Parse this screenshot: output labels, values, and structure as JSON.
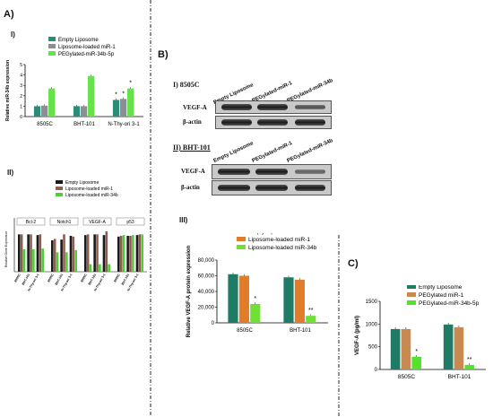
{
  "panels": {
    "A": "A)",
    "B": "B)",
    "C": "C)"
  },
  "A_I": {
    "roman": "I)",
    "ylabel": "Relative miR-34b expression",
    "legend": [
      "Empty Liposome",
      "Liposome-loaded miR-1",
      "PEGylated-miR-34b-5p"
    ],
    "colors": [
      "#2a8c79",
      "#8a8f95",
      "#66e24a"
    ]
  },
  "A_II": {
    "roman": "II)",
    "ylabel": "Relative Gene Expression",
    "legend": [
      "Empty Liposome",
      "Liposome-loaded miR-1",
      "Liposome-loaded miR-34b"
    ],
    "colors": [
      "#1a1a1a",
      "#8a5f4e",
      "#4ecf3a"
    ],
    "genes": [
      "Bcl-2",
      "Notch1",
      "VEGF-A",
      "p53"
    ],
    "cell_lines": [
      "8505C",
      "BHT-101",
      "N-Thy-ori 3-1"
    ]
  },
  "B_I": {
    "roman": "I) 8505C",
    "lanes": [
      "Empty Liposome",
      "PEGylated-miR-1",
      "PEGylated-miR-34b"
    ],
    "rows": [
      "VEGF-A",
      "β-actin"
    ]
  },
  "B_II": {
    "roman": "II) BHT-101",
    "lanes": [
      "Empty Liposome",
      "PEGylated-miR-1",
      "PEGylated-miR-34b"
    ],
    "rows": [
      "VEGF-A",
      "β-actin"
    ]
  },
  "B_III": {
    "roman": "III)",
    "ylabel": "Relative VEGF-A protein expression",
    "legend": [
      "Empty Liposome",
      "Liposome-loaded miR-1",
      "Liposome-loaded miR-34b"
    ],
    "colors": [
      "#1f7a66",
      "#e07c2a",
      "#6fe034"
    ]
  },
  "C": {
    "ylabel": "VEGF-A (pg/ml)",
    "legend": [
      "Empty Liposome",
      "PEGylated miR-1",
      "PEGylated-miR-34b-5p"
    ],
    "colors": [
      "#1f7a66",
      "#c98a52",
      "#55e22e"
    ]
  },
  "chart_data": [
    {
      "id": "A_I",
      "type": "bar",
      "categories": [
        "8505C",
        "BHT-101",
        "N-Thy-ori 3-1"
      ],
      "ylim": [
        0,
        5
      ],
      "yticks": [
        0,
        1,
        2,
        3,
        4,
        5
      ],
      "series": [
        {
          "name": "Empty Liposome",
          "values": [
            1.0,
            1.0,
            1.6
          ]
        },
        {
          "name": "Liposome-loaded miR-1",
          "values": [
            1.05,
            1.0,
            1.7
          ]
        },
        {
          "name": "PEGylated-miR-34b-5p",
          "values": [
            2.7,
            3.9,
            2.7
          ]
        }
      ],
      "annotations": [
        [
          "",
          "",
          "*"
        ],
        [
          "",
          "",
          "*"
        ],
        [
          "",
          "",
          "*"
        ]
      ]
    },
    {
      "id": "A_II",
      "type": "bar",
      "categories": [
        "Bcl-2 8505C",
        "Bcl-2 BHT-101",
        "Bcl-2 N-Thy-ori 3-1",
        "Notch1 8505C",
        "Notch1 BHT-101",
        "Notch1 N-Thy-ori 3-1",
        "VEGF-A 8505C",
        "VEGF-A BHT-101",
        "VEGF-A N-Thy-ori 3-1",
        "p53 8505C",
        "p53 BHT-101",
        "p53 N-Thy-ori 3-1"
      ],
      "ylim": [
        0,
        6
      ],
      "series": [
        {
          "name": "Empty Liposome",
          "values": [
            5.0,
            5.0,
            4.9,
            4.2,
            4.3,
            4.8,
            4.9,
            5.0,
            4.9,
            4.7,
            4.8,
            4.9
          ]
        },
        {
          "name": "Liposome-loaded miR-1",
          "values": [
            5.0,
            5.0,
            5.0,
            4.4,
            5.0,
            4.7,
            5.0,
            5.0,
            5.4,
            4.8,
            4.8,
            5.0
          ]
        },
        {
          "name": "Liposome-loaded miR-34b",
          "values": [
            3.0,
            3.0,
            3.1,
            2.6,
            2.6,
            2.9,
            1.0,
            1.0,
            1.0,
            4.9,
            4.9,
            5.0
          ]
        }
      ]
    },
    {
      "id": "B_III",
      "type": "bar",
      "categories": [
        "8505C",
        "BHT-101"
      ],
      "ylim": [
        0,
        80000
      ],
      "yticks": [
        0,
        20000,
        40000,
        60000,
        80000
      ],
      "ytick_labels": [
        "0",
        "20,000",
        "40,000",
        "60,000",
        "80,000"
      ],
      "series": [
        {
          "name": "Empty Liposome",
          "values": [
            62000,
            58000
          ]
        },
        {
          "name": "Liposome-loaded miR-1",
          "values": [
            60000,
            55000
          ]
        },
        {
          "name": "Liposome-loaded miR-34b",
          "values": [
            24000,
            9000
          ]
        }
      ],
      "annotations": [
        [
          "",
          ""
        ],
        [
          "",
          ""
        ],
        [
          "*",
          "**"
        ]
      ]
    },
    {
      "id": "C",
      "type": "bar",
      "categories": [
        "8505C",
        "BHT-101"
      ],
      "ylim": [
        0,
        1500
      ],
      "yticks": [
        0,
        500,
        1000,
        1500
      ],
      "series": [
        {
          "name": "Empty Liposome",
          "values": [
            890,
            990
          ]
        },
        {
          "name": "PEGylated miR-1",
          "values": [
            890,
            930
          ]
        },
        {
          "name": "PEGylated-miR-34b-5p",
          "values": [
            280,
            100
          ]
        }
      ],
      "annotations": [
        [
          "",
          ""
        ],
        [
          "",
          ""
        ],
        [
          "*",
          "**"
        ]
      ]
    }
  ]
}
